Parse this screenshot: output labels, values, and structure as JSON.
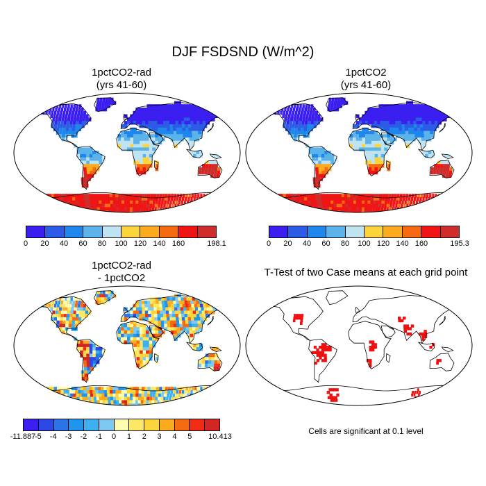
{
  "main_title": "DJF FSDSND (W/m^2)",
  "panels": [
    {
      "title": "1pctCO2-rad\n(yrs 41-60)"
    },
    {
      "title": "1pctCO2\n(yrs 41-60)"
    },
    {
      "title": "1pctCO2-rad\n- 1pctCO2"
    },
    {
      "title": "T-Test of two Case means at each grid point"
    }
  ],
  "colorbars": [
    {
      "colors": [
        "#3a1ff0",
        "#2c5be6",
        "#1f86ec",
        "#5cb3ea",
        "#c0e3f2",
        "#fcd53c",
        "#fcaa1e",
        "#f66b12",
        "#f01414",
        "#cf2c2c"
      ],
      "labels": [
        "0",
        "20",
        "40",
        "60",
        "80",
        "100",
        "120",
        "140",
        "160",
        "198.1"
      ]
    },
    {
      "colors": [
        "#3a1ff0",
        "#2c5be6",
        "#1f86ec",
        "#5cb3ea",
        "#c0e3f2",
        "#fcd53c",
        "#fcaa1e",
        "#f66b12",
        "#f01414",
        "#cf2c2c"
      ],
      "labels": [
        "0",
        "20",
        "40",
        "60",
        "80",
        "100",
        "120",
        "140",
        "160",
        "195.3"
      ]
    },
    {
      "colors": [
        "#3a1ff0",
        "#2c49e8",
        "#2c74e6",
        "#1f96ec",
        "#3fb0ef",
        "#7ec9f2",
        "#fdfcb0",
        "#fce865",
        "#fcd53c",
        "#fcaa1e",
        "#f66b12",
        "#f02c14",
        "#d12626"
      ],
      "labels": [
        "-11.887",
        "-5",
        "-4",
        "-3",
        "-2",
        "-1",
        "0",
        "1",
        "2",
        "3",
        "4",
        "5",
        "10.413"
      ]
    }
  ],
  "significance_note": "Cells are significant at 0.1 level",
  "chart_data": [
    {
      "type": "heatmap",
      "title": "1pctCO2-rad (yrs 41-60)",
      "variable": "DJF FSDSND",
      "units": "W/m^2",
      "projection": "Robinson",
      "range": [
        0,
        198.1
      ],
      "contour_levels": [
        20,
        40,
        60,
        80,
        100,
        120,
        140,
        160
      ]
    },
    {
      "type": "heatmap",
      "title": "1pctCO2 (yrs 41-60)",
      "variable": "DJF FSDSND",
      "units": "W/m^2",
      "projection": "Robinson",
      "range": [
        0,
        195.3
      ],
      "contour_levels": [
        20,
        40,
        60,
        80,
        100,
        120,
        140,
        160
      ]
    },
    {
      "type": "heatmap",
      "title": "1pctCO2-rad - 1pctCO2",
      "variable": "DJF FSDSND",
      "units": "W/m^2",
      "projection": "Robinson",
      "range": [
        -11.887,
        10.413
      ],
      "contour_levels": [
        -5,
        -4,
        -3,
        -2,
        -1,
        0,
        1,
        2,
        3,
        4,
        5
      ]
    },
    {
      "type": "heatmap",
      "title": "T-Test of two Case means at each grid point",
      "projection": "Robinson",
      "significance_level": 0.1
    }
  ]
}
